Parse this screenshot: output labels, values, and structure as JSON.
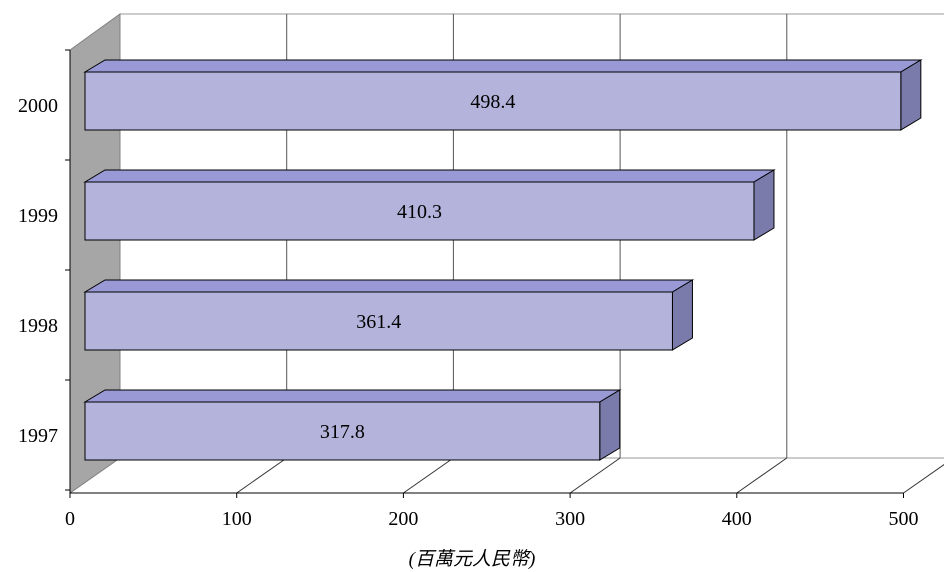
{
  "chart_data": {
    "type": "bar",
    "orientation": "horizontal",
    "style": "3d",
    "categories": [
      "1997",
      "1998",
      "1999",
      "2000"
    ],
    "values": [
      317.8,
      361.4,
      410.3,
      498.4
    ],
    "data_labels": [
      "317.8",
      "361.4",
      "410.3",
      "498.4"
    ],
    "xlabel": "(百萬元人民幣)",
    "ylabel": "",
    "xlim": [
      0,
      500
    ],
    "xticks": [
      0,
      100,
      200,
      300,
      400,
      500
    ],
    "grid": "vertical",
    "legend": "none",
    "colors": {
      "bar_front": "#B3B3DB",
      "bar_top": "#9999D6",
      "bar_side": "#7A7AAB",
      "wall": "#A6A6A6",
      "gridline": "#555555"
    }
  }
}
